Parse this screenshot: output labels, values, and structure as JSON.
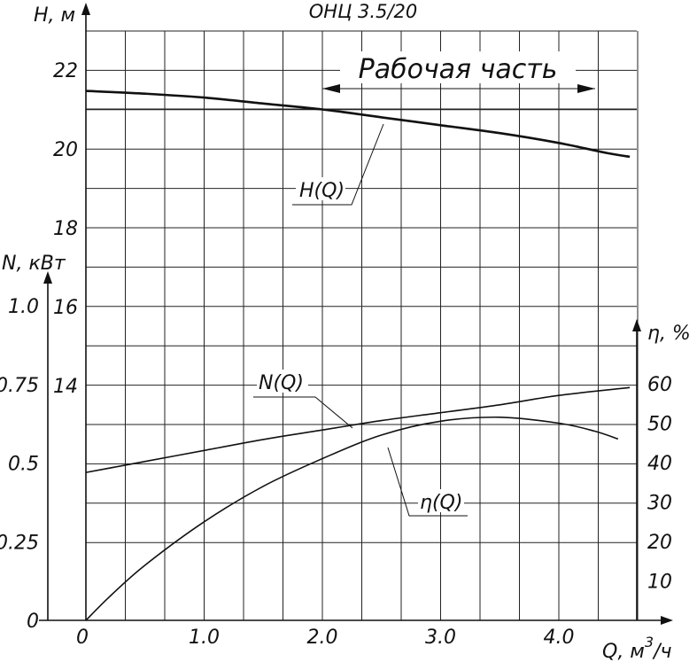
{
  "chart_data": {
    "type": "line",
    "title": "ОНЦ 3.5/20",
    "xlabel": "Q, м³/ч",
    "xlabel_main": "Q, м",
    "xlabel_exp": "3",
    "xlabel_tail": "/ч",
    "x_ticks": [
      "0",
      "1.0",
      "2.0",
      "3.0",
      "4.0"
    ],
    "xlim": [
      0,
      4.6
    ],
    "grid": true,
    "axes": {
      "H": {
        "label": "H, м",
        "ticks": [
          "22",
          "20",
          "18",
          "16",
          "14"
        ],
        "ylim": [
          12,
          23
        ]
      },
      "N": {
        "label": "N, кВт",
        "ticks": [
          "1.0",
          "0.75",
          "0.5",
          "0.25",
          "0"
        ],
        "ylim": [
          0,
          1.0
        ]
      },
      "eta": {
        "label": "η, %",
        "ticks": [
          "60",
          "50",
          "40",
          "30",
          "20",
          "10"
        ],
        "ylim": [
          0,
          75
        ]
      }
    },
    "annotation": "Рабочая часть",
    "working_range": [
      2.0,
      4.4
    ],
    "series": [
      {
        "name": "H(Q)",
        "axis": "H",
        "x": [
          0,
          0.5,
          1.0,
          1.5,
          2.0,
          2.5,
          3.0,
          3.5,
          4.0,
          4.4,
          4.6
        ],
        "y": [
          21.47,
          21.4,
          21.3,
          21.15,
          21.0,
          20.8,
          20.6,
          20.4,
          20.15,
          19.9,
          19.8
        ]
      },
      {
        "name": "N(Q)",
        "axis": "N",
        "x": [
          0,
          0.5,
          1.0,
          1.5,
          2.0,
          2.5,
          3.0,
          3.5,
          4.0,
          4.6
        ],
        "y": [
          0.47,
          0.505,
          0.54,
          0.575,
          0.605,
          0.635,
          0.66,
          0.685,
          0.715,
          0.74
        ]
      },
      {
        "name": "η(Q)",
        "axis": "eta",
        "x": [
          0,
          0.2,
          0.5,
          1.0,
          1.5,
          2.0,
          2.5,
          3.0,
          3.5,
          4.0,
          4.3,
          4.5
        ],
        "y": [
          0,
          6,
          14,
          25,
          34,
          41,
          47,
          50.5,
          51.5,
          50,
          48,
          46
        ]
      }
    ]
  }
}
